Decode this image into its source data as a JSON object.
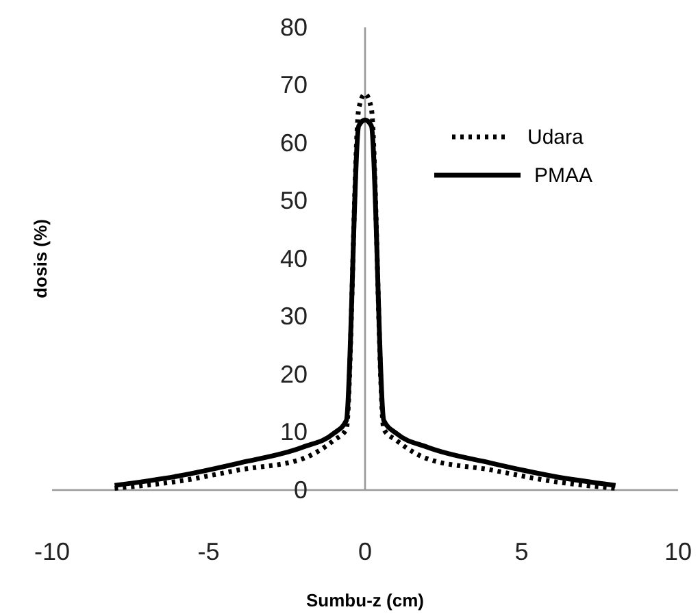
{
  "chart_data": {
    "type": "line",
    "xlabel": "Sumbu-z (cm)",
    "ylabel": "dosis (%)",
    "xlim": [
      -10,
      10
    ],
    "xticks": [
      -10,
      -5,
      0,
      5,
      10
    ],
    "ylim": [
      0,
      80
    ],
    "yticks": [
      0,
      10,
      20,
      30,
      40,
      50,
      60,
      70,
      80
    ],
    "grid": false,
    "legend": "top right",
    "marker": "none",
    "series": [
      {
        "name": "Udara",
        "color": "#000000",
        "line_style": "dotted",
        "x": [
          -8,
          -6,
          -4,
          -2,
          -1,
          -0.6,
          -0.2,
          0,
          0.2,
          0.6,
          1,
          2,
          4,
          6,
          8
        ],
        "values": [
          0.3,
          1.5,
          3.5,
          5.4,
          8.6,
          10.5,
          66,
          68.5,
          66,
          10.5,
          8.6,
          5.4,
          3.5,
          1.5,
          0.3
        ]
      },
      {
        "name": "PMAA",
        "color": "#000000",
        "line_style": "solid",
        "x": [
          -8,
          -6,
          -4,
          -2,
          -1,
          -0.6,
          -0.2,
          0,
          0.2,
          0.6,
          1,
          2,
          4,
          6,
          8
        ],
        "values": [
          0.8,
          2.4,
          4.7,
          7.4,
          9.8,
          12,
          63,
          64,
          63,
          12,
          9.8,
          7.4,
          4.7,
          2.4,
          0.8
        ]
      }
    ]
  }
}
